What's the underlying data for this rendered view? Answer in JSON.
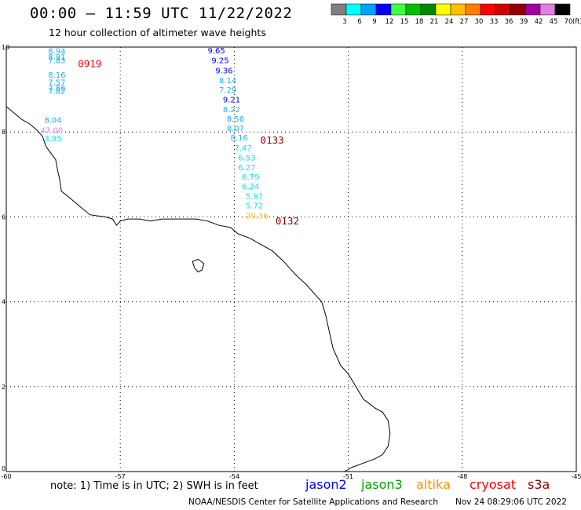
{
  "header": {
    "title": "00:00 – 11:59 UTC 11/22/2022",
    "subtitle": "12 hour collection of altimeter wave heights"
  },
  "legend": {
    "unit": "(ft)",
    "bins": [
      {
        "label": "3",
        "color": "#808080"
      },
      {
        "label": "6",
        "color": "#00ffff"
      },
      {
        "label": "9",
        "color": "#00a0ff"
      },
      {
        "label": "12",
        "color": "#0000ff"
      },
      {
        "label": "15",
        "color": "#40ff40"
      },
      {
        "label": "18",
        "color": "#00c000"
      },
      {
        "label": "21",
        "color": "#008800"
      },
      {
        "label": "24",
        "color": "#ffff00"
      },
      {
        "label": "27",
        "color": "#ffc000"
      },
      {
        "label": "30",
        "color": "#ff8000"
      },
      {
        "label": "33",
        "color": "#ff0000"
      },
      {
        "label": "36",
        "color": "#d00000"
      },
      {
        "label": "39",
        "color": "#900000"
      },
      {
        "label": "42",
        "color": "#a000a0"
      },
      {
        "label": "45",
        "color": "#e080e0"
      },
      {
        "label": "70",
        "color": "#000000"
      }
    ]
  },
  "axes": {
    "lon_ticks": [
      "-60",
      "-57",
      "-54",
      "-51",
      "-48",
      "-45"
    ],
    "lat_ticks": [
      "0",
      "2",
      "4",
      "6",
      "8",
      "10"
    ],
    "lon_values": [
      -60,
      -57,
      -54,
      -51,
      -48,
      -45
    ],
    "lat_values": [
      0,
      2,
      4,
      6,
      8,
      10
    ],
    "lon_range": [
      -60,
      -45
    ],
    "lat_range": [
      0,
      10
    ],
    "grid": true
  },
  "tracks": [
    {
      "pass": "0919",
      "pass_color": "#ff0000",
      "label_lat": 9.6,
      "points": [
        {
          "v": "8.94",
          "c": "#1ab0ff",
          "lon": -58.9,
          "lat": 9.84
        },
        {
          "v": "8.91",
          "c": "#1ab0ff",
          "lon": -58.9,
          "lat": 9.7
        },
        {
          "v": "7.83",
          "c": "#1ab0ff",
          "lon": -58.9,
          "lat": 9.62
        },
        {
          "v": "8.16",
          "c": "#1ab0ff",
          "lon": -58.9,
          "lat": 9.28
        },
        {
          "v": "7.57",
          "c": "#1ab0ff",
          "lon": -58.9,
          "lat": 9.1
        },
        {
          "v": "7.86",
          "c": "#1ab0ff",
          "lon": -58.9,
          "lat": 8.97
        },
        {
          "v": "7.82",
          "c": "#1ab0ff",
          "lon": -58.9,
          "lat": 8.9
        },
        {
          "v": "8.04",
          "c": "#1ab0ff",
          "lon": -59.0,
          "lat": 8.22
        },
        {
          "v": "47.00",
          "c": "#e080e0",
          "lon": -59.1,
          "lat": 7.98
        },
        {
          "v": "3.95",
          "c": "#00e5ff",
          "lon": -59.0,
          "lat": 7.78
        }
      ]
    },
    {
      "pass": "0133",
      "pass_color": "#900000",
      "label_lat": 7.8,
      "points": [
        {
          "v": "9.65",
          "c": "#0000ff",
          "lon": -54.7,
          "lat": 9.85
        },
        {
          "v": "9.25",
          "c": "#0000ff",
          "lon": -54.6,
          "lat": 9.62
        },
        {
          "v": "9.36",
          "c": "#0000ff",
          "lon": -54.5,
          "lat": 9.38
        },
        {
          "v": "8.14",
          "c": "#1ab0ff",
          "lon": -54.4,
          "lat": 9.15
        },
        {
          "v": "7.29",
          "c": "#1ab0ff",
          "lon": -54.4,
          "lat": 8.93
        },
        {
          "v": "9.21",
          "c": "#0000ff",
          "lon": -54.3,
          "lat": 8.7
        },
        {
          "v": "8.22",
          "c": "#1ab0ff",
          "lon": -54.3,
          "lat": 8.47
        },
        {
          "v": "8.56",
          "c": "#1ab0ff",
          "lon": -54.2,
          "lat": 8.24
        },
        {
          "v": "8.07",
          "c": "#1ab0ff",
          "lon": -54.2,
          "lat": 8.02
        },
        {
          "v": "8.16",
          "c": "#1ab0ff",
          "lon": -54.1,
          "lat": 7.8
        }
      ]
    },
    {
      "pass": "0132",
      "pass_color": "#900000",
      "label_lat": 5.9,
      "points": [
        {
          "v": "7.47",
          "c": "#00e5ff",
          "lon": -54.0,
          "lat": 7.56
        },
        {
          "v": "6.53",
          "c": "#00e5ff",
          "lon": -53.9,
          "lat": 7.33
        },
        {
          "v": "6.27",
          "c": "#00e5ff",
          "lon": -53.9,
          "lat": 7.1
        },
        {
          "v": "6.79",
          "c": "#00e5ff",
          "lon": -53.8,
          "lat": 6.88
        },
        {
          "v": "6.24",
          "c": "#00e5ff",
          "lon": -53.8,
          "lat": 6.65
        },
        {
          "v": "5.97",
          "c": "#00e5ff",
          "lon": -53.7,
          "lat": 6.42
        },
        {
          "v": "5.72",
          "c": "#00e5ff",
          "lon": -53.7,
          "lat": 6.2
        },
        {
          "v": "29.36",
          "c": "#ffc000",
          "lon": -53.7,
          "lat": 5.96
        }
      ]
    }
  ],
  "coastline": [
    [
      -60.0,
      8.6
    ],
    [
      -59.8,
      8.45
    ],
    [
      -59.6,
      8.3
    ],
    [
      -59.4,
      8.2
    ],
    [
      -59.2,
      8.05
    ],
    [
      -59.05,
      7.9
    ],
    [
      -58.95,
      7.65
    ],
    [
      -58.7,
      7.35
    ],
    [
      -58.65,
      7.1
    ],
    [
      -58.6,
      6.9
    ],
    [
      -58.55,
      6.6
    ],
    [
      -58.4,
      6.5
    ],
    [
      -58.2,
      6.35
    ],
    [
      -58.0,
      6.2
    ],
    [
      -57.8,
      6.05
    ],
    [
      -57.4,
      6.0
    ],
    [
      -57.2,
      5.95
    ],
    [
      -57.1,
      5.8
    ],
    [
      -57.0,
      5.9
    ],
    [
      -56.8,
      5.95
    ],
    [
      -56.5,
      5.95
    ],
    [
      -56.2,
      5.9
    ],
    [
      -55.9,
      5.95
    ],
    [
      -55.6,
      5.95
    ],
    [
      -55.3,
      5.95
    ],
    [
      -55.0,
      5.95
    ],
    [
      -54.7,
      5.9
    ],
    [
      -54.4,
      5.8
    ],
    [
      -54.1,
      5.75
    ],
    [
      -53.9,
      5.6
    ],
    [
      -53.6,
      5.5
    ],
    [
      -53.3,
      5.35
    ],
    [
      -53.0,
      5.2
    ],
    [
      -52.7,
      4.95
    ],
    [
      -52.4,
      4.65
    ],
    [
      -52.1,
      4.4
    ],
    [
      -51.9,
      4.2
    ],
    [
      -51.7,
      4.0
    ],
    [
      -51.6,
      3.7
    ],
    [
      -51.5,
      3.3
    ],
    [
      -51.4,
      2.9
    ],
    [
      -51.2,
      2.5
    ],
    [
      -51.0,
      2.3
    ],
    [
      -50.8,
      2.0
    ],
    [
      -50.6,
      1.7
    ],
    [
      -50.3,
      1.5
    ],
    [
      -50.1,
      1.4
    ],
    [
      -49.95,
      1.2
    ],
    [
      -49.9,
      0.9
    ],
    [
      -49.95,
      0.6
    ],
    [
      -50.1,
      0.4
    ],
    [
      -50.3,
      0.3
    ],
    [
      -50.6,
      0.2
    ],
    [
      -50.9,
      0.1
    ],
    [
      -51.1,
      0.0
    ]
  ],
  "island": [
    [
      -55.1,
      4.95
    ],
    [
      -54.95,
      5.0
    ],
    [
      -54.8,
      4.9
    ],
    [
      -54.85,
      4.75
    ],
    [
      -54.95,
      4.7
    ],
    [
      -55.05,
      4.8
    ],
    [
      -55.1,
      4.95
    ]
  ],
  "satellites": [
    {
      "name": "jason2",
      "color": "#0000ff"
    },
    {
      "name": "jason3",
      "color": "#00a000"
    },
    {
      "name": "altika",
      "color": "#ff9000"
    },
    {
      "name": "cryosat",
      "color": "#ff0000"
    },
    {
      "name": "s3a",
      "color": "#900000"
    }
  ],
  "footer": {
    "note": "note: 1) Time is in UTC; 2) SWH is in feet",
    "credit": "NOAA/NESDIS Center for Satellite Applications and Research",
    "timestamp": "Nov 24 08:29:06 UTC 2022"
  }
}
